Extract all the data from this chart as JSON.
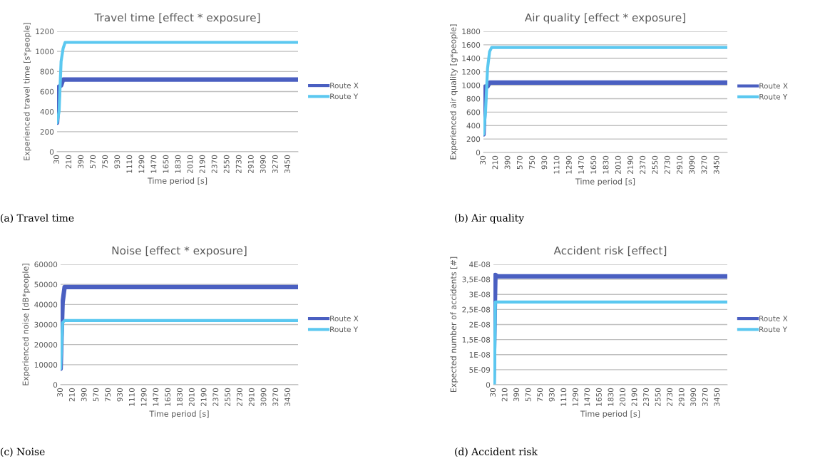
{
  "chart_data": [
    {
      "type": "line",
      "title": "Travel time [effect * exposure]",
      "xlabel": "Time period [s]",
      "ylabel": "Experienced travel time [s*people]",
      "annotations": [
        "(a) Travel time"
      ],
      "grid": "y",
      "legend": "right",
      "xlim": [
        30,
        3600
      ],
      "xticks": [
        30,
        210,
        390,
        570,
        750,
        930,
        1110,
        1290,
        1470,
        1650,
        1830,
        2010,
        2190,
        2370,
        2550,
        2730,
        2910,
        3090,
        3270,
        3450
      ],
      "ylim": [
        0,
        1200
      ],
      "yticks": [
        0,
        200,
        400,
        600,
        800,
        1000,
        1200
      ],
      "series": [
        {
          "name": "Route X",
          "color": "#4a5fc1",
          "x": [
            30,
            60,
            90,
            120,
            3600
          ],
          "values": [
            290,
            650,
            660,
            720,
            720
          ]
        },
        {
          "name": "Route Y",
          "color": "#5bc8f0",
          "x": [
            30,
            60,
            90,
            120,
            150,
            3600
          ],
          "values": [
            290,
            400,
            900,
            1030,
            1090,
            1090
          ]
        }
      ]
    },
    {
      "type": "line",
      "title": "Air quality [effect * exposure]",
      "xlabel": "Time period [s]",
      "ylabel": "Experienced air quality [g*people]",
      "annotations": [
        "(b) Air quality"
      ],
      "grid": "y",
      "legend": "right",
      "xlim": [
        30,
        3600
      ],
      "xticks": [
        30,
        210,
        390,
        570,
        750,
        930,
        1110,
        1290,
        1470,
        1650,
        1830,
        2010,
        2190,
        2370,
        2550,
        2730,
        2910,
        3090,
        3270,
        3450
      ],
      "ylim": [
        0,
        1800
      ],
      "yticks": [
        0,
        200,
        400,
        600,
        800,
        1000,
        1200,
        1400,
        1600,
        1800
      ],
      "series": [
        {
          "name": "Route X",
          "color": "#4a5fc1",
          "x": [
            30,
            60,
            90,
            120,
            3600
          ],
          "values": [
            270,
            980,
            980,
            1040,
            1040
          ]
        },
        {
          "name": "Route Y",
          "color": "#5bc8f0",
          "x": [
            30,
            60,
            90,
            120,
            150,
            3600
          ],
          "values": [
            270,
            600,
            1250,
            1500,
            1560,
            1560
          ]
        }
      ]
    },
    {
      "type": "line",
      "title": "Noise [effect * exposure]",
      "xlabel": "Time period [s]",
      "ylabel": "Experienced noise [dB*people]",
      "annotations": [
        "(c) Noise"
      ],
      "grid": "y",
      "legend": "right",
      "xlim": [
        30,
        3600
      ],
      "xticks": [
        30,
        210,
        390,
        570,
        750,
        930,
        1110,
        1290,
        1470,
        1650,
        1830,
        2010,
        2190,
        2370,
        2550,
        2730,
        2910,
        3090,
        3270,
        3450
      ],
      "ylim": [
        0,
        60000
      ],
      "yticks": [
        0,
        10000,
        20000,
        30000,
        40000,
        50000,
        60000
      ],
      "series": [
        {
          "name": "Route X",
          "color": "#4a5fc1",
          "x": [
            30,
            60,
            90,
            3600
          ],
          "values": [
            8000,
            41000,
            48700,
            48700
          ]
        },
        {
          "name": "Route Y",
          "color": "#5bc8f0",
          "x": [
            30,
            60,
            90,
            3600
          ],
          "values": [
            8000,
            31000,
            32000,
            32000
          ]
        }
      ]
    },
    {
      "type": "line",
      "title": "Accident risk [effect]",
      "xlabel": "Time period [s]",
      "ylabel": "Expected number of accidents [#]",
      "annotations": [
        "(d) Accident risk"
      ],
      "grid": "y",
      "legend": "right",
      "xlim": [
        30,
        3600
      ],
      "xticks": [
        30,
        210,
        390,
        570,
        750,
        930,
        1110,
        1290,
        1470,
        1650,
        1830,
        2010,
        2190,
        2370,
        2550,
        2730,
        2910,
        3090,
        3270,
        3450
      ],
      "ylim": [
        0,
        4e-08
      ],
      "yticks": [
        {
          "value": 0,
          "label": "0"
        },
        {
          "value": 5e-09,
          "label": "5E-09"
        },
        {
          "value": 1e-08,
          "label": "1E-08"
        },
        {
          "value": 1.5e-08,
          "label": "1,5E-08"
        },
        {
          "value": 2e-08,
          "label": "2E-08"
        },
        {
          "value": 2.5e-08,
          "label": "2,5E-08"
        },
        {
          "value": 3e-08,
          "label": "3E-08"
        },
        {
          "value": 3.5e-08,
          "label": "3,5E-08"
        },
        {
          "value": 4e-08,
          "label": "4E-08"
        }
      ],
      "series": [
        {
          "name": "Route X",
          "color": "#4a5fc1",
          "x": [
            30,
            60,
            90,
            3600
          ],
          "values": [
            0,
            3.65e-08,
            3.6e-08,
            3.6e-08
          ]
        },
        {
          "name": "Route Y",
          "color": "#5bc8f0",
          "x": [
            30,
            45,
            60,
            3600
          ],
          "values": [
            0,
            0,
            2.75e-08,
            2.75e-08
          ]
        }
      ]
    }
  ]
}
